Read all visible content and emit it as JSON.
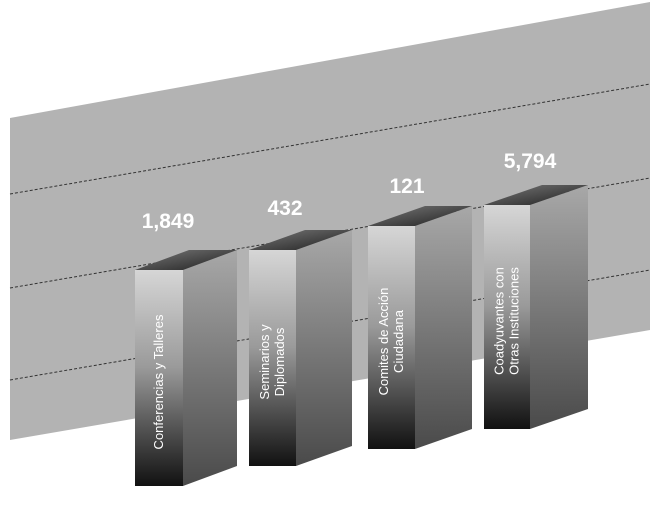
{
  "chart_data": {
    "type": "bar",
    "style": "3d-column",
    "categories": [
      "Conferencias y Talleres",
      "Seminarios y Diplomados",
      "Comites de Acción Ciudadana",
      "Coadyuvantes con Otras Instituciones"
    ],
    "category_lines": [
      [
        "Conferencias y Talleres"
      ],
      [
        "Seminarios y",
        "Diplomados"
      ],
      [
        "Comites de Acción",
        "Ciudadana"
      ],
      [
        "Coadyuvantes con",
        "Otras Instituciones"
      ]
    ],
    "values": [
      1849,
      432,
      121,
      5794
    ],
    "value_labels": [
      "1,849",
      "432",
      "121",
      "5,794"
    ],
    "grid": true,
    "legend": "none",
    "colors": {
      "background_wall": "#b3b3b3",
      "grid_line": "#333333",
      "bar_top": "#3a3a3a",
      "bar_front_dark": "#111111",
      "bar_front_light": "#d6d6d6",
      "bar_side": "#888888",
      "text": "#ffffff"
    }
  }
}
